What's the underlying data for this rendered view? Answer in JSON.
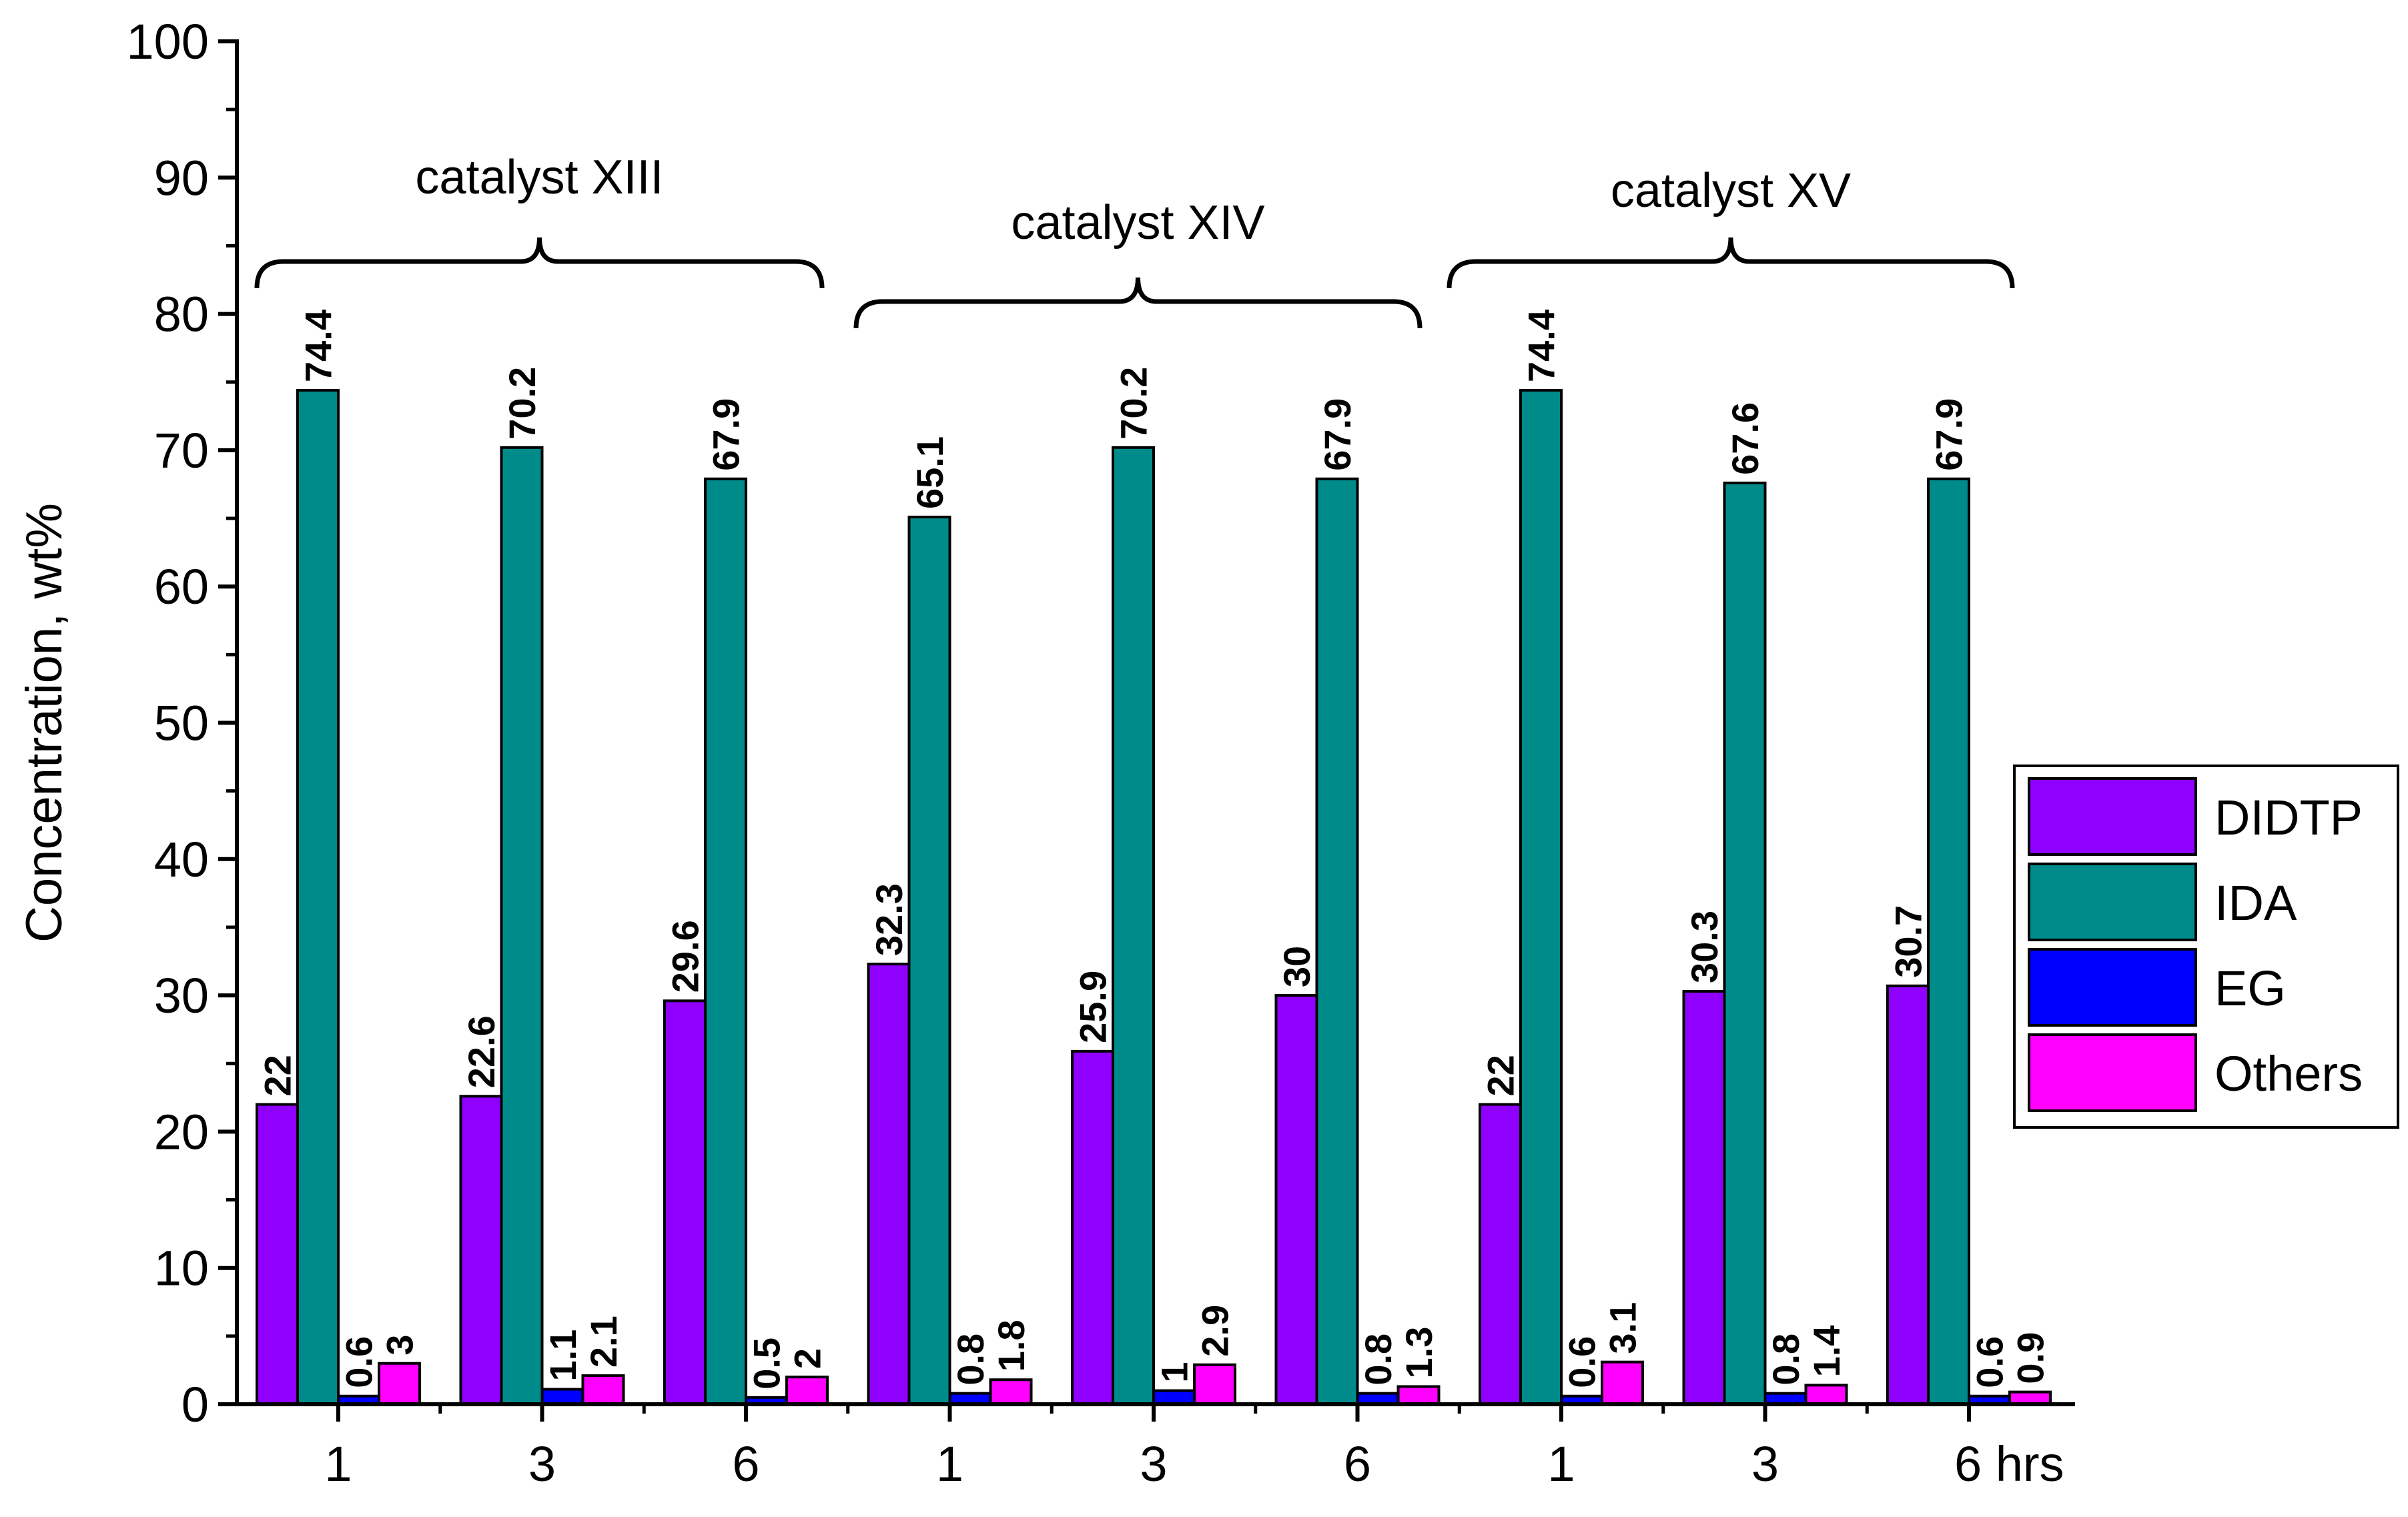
{
  "chart_data": {
    "type": "bar",
    "ylabel": "Concentration, wt%",
    "ylim": [
      0,
      100
    ],
    "yticks": [
      "0",
      "10",
      "20",
      "30",
      "40",
      "50",
      "60",
      "70",
      "80",
      "90",
      "100"
    ],
    "x_tick_labels": [
      "1",
      "3",
      "6",
      "1",
      "3",
      "6",
      "1",
      "3",
      "6 hrs"
    ],
    "categories": [
      "1",
      "3",
      "6",
      "1",
      "3",
      "6",
      "1",
      "3",
      "6"
    ],
    "groups": [
      "catalyst XIII",
      "catalyst XIV",
      "catalyst XV"
    ],
    "legend_position": "right",
    "series": [
      {
        "name": "DIDTP",
        "color": "#8F00FF",
        "values": [
          22,
          22.6,
          29.6,
          32.3,
          25.9,
          30,
          22,
          30.3,
          30.7
        ],
        "labels": [
          "22",
          "22.6",
          "29.6",
          "32.3",
          "25.9",
          "30",
          "22",
          "30.3",
          "30.7"
        ]
      },
      {
        "name": "IDA",
        "color": "#008B8B",
        "values": [
          74.4,
          70.2,
          67.9,
          65.1,
          70.2,
          67.9,
          74.4,
          67.6,
          67.9
        ],
        "labels": [
          "74.4",
          "70.2",
          "67.9",
          "65.1",
          "70.2",
          "67.9",
          "74.4",
          "67.6",
          "67.9"
        ]
      },
      {
        "name": "EG",
        "color": "#0000FF",
        "values": [
          0.6,
          1.1,
          0.5,
          0.8,
          1,
          0.8,
          0.6,
          0.8,
          0.6
        ],
        "labels": [
          "0.6",
          "1.1",
          "0.5",
          "0.8",
          "1",
          "0.8",
          "0.6",
          "0.8",
          "0.6"
        ]
      },
      {
        "name": "Others",
        "color": "#FF00FF",
        "values": [
          3,
          2.1,
          2,
          1.8,
          2.9,
          1.3,
          3.1,
          1.4,
          0.9
        ],
        "labels": [
          "3",
          "2.1",
          "2",
          "1.8",
          "2.9",
          "1.3",
          "3.1",
          "1.4",
          "0.9"
        ]
      }
    ]
  }
}
